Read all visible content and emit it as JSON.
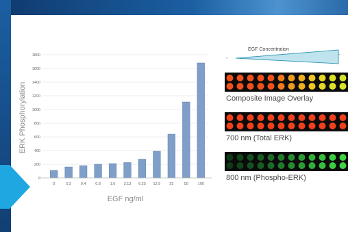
{
  "colors": {
    "bar": "#7f9fc9",
    "bar_edge": "#5e80ad",
    "grid": "#d9d9d9",
    "wedge_fill": "#bfe4ee",
    "wedge_edge": "#3a9ab8",
    "arrow": "#1ea7e0"
  },
  "icons": {
    "corner_arrow": "chevron-right-icon"
  },
  "chart_data": {
    "type": "bar",
    "title": "",
    "xlabel": "EGF ng/ml",
    "ylabel": "ERK Phosphorylation",
    "ylim": [
      0,
      1800
    ],
    "yticks": [
      0,
      200,
      400,
      600,
      800,
      1000,
      1200,
      1400,
      1600,
      1800
    ],
    "grid": true,
    "categories": [
      "0",
      "0.2",
      "0.4",
      "0.8",
      "1.6",
      "3.13",
      "6.25",
      "12.5",
      "25",
      "50",
      "100"
    ],
    "values": [
      110,
      160,
      180,
      200,
      210,
      225,
      275,
      390,
      640,
      1110,
      1680
    ]
  },
  "panel": {
    "gradient_label": "EGF Concentration",
    "gradient_minus": "-",
    "gradient_plus": "+",
    "plates": [
      {
        "caption": "Composite Image Overlay",
        "colors": [
          "#f0501c",
          "#f0501c",
          "#f0501c",
          "#f0501c",
          "#f0501c",
          "#f07a1c",
          "#f09a20",
          "#f0b020",
          "#f0c824",
          "#e8d826",
          "#e0e02a",
          "#d8e42c"
        ]
      },
      {
        "caption": "700 nm (Total ERK)",
        "colors": [
          "#f0401c",
          "#f0401c",
          "#f0401c",
          "#f0401c",
          "#f0401c",
          "#f0401c",
          "#f0401c",
          "#f0401c",
          "#f0401c",
          "#f0401c",
          "#f0401c",
          "#f0401c"
        ]
      },
      {
        "caption": "800 nm (Phospho-ERK)",
        "colors": [
          "#0f3a18",
          "#12451c",
          "#155020",
          "#185c24",
          "#1c6a28",
          "#207a2c",
          "#258c30",
          "#2a9e34",
          "#30b038",
          "#36c03c",
          "#3ccc40",
          "#40d444"
        ]
      }
    ]
  }
}
